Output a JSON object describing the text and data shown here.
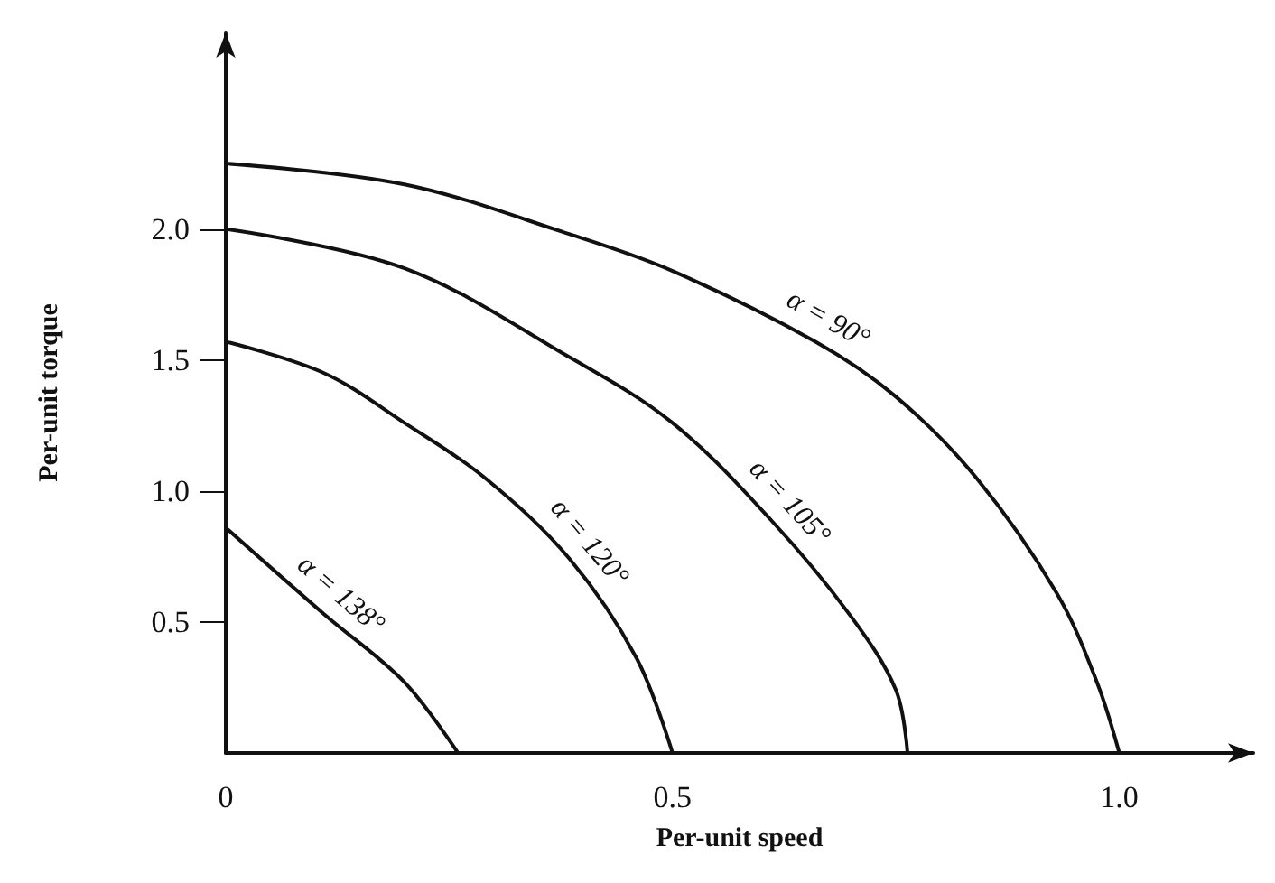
{
  "chart_data": {
    "type": "line",
    "xlabel": "Per-unit speed",
    "ylabel": "Per-unit torque",
    "xlim": [
      0,
      1.15
    ],
    "ylim": [
      0,
      2.75
    ],
    "xticks": [
      0,
      0.5,
      {
        "value": 1,
        "label": "1.0"
      }
    ],
    "yticks": [
      0.5,
      {
        "value": 1,
        "label": "1.0"
      },
      1.5,
      {
        "value": 2,
        "label": "2.0"
      }
    ],
    "grid": false,
    "marker": "none",
    "line_style": "solid",
    "series": [
      {
        "color": "#111111",
        "x": [
          0,
          0.2,
          0.385,
          0.5,
          0.66,
          0.75,
          0.84,
          0.93,
          0.975,
          1.0
        ],
        "values": [
          2.25,
          2.17,
          1.98,
          1.84,
          1.57,
          1.36,
          1.05,
          0.61,
          0.27,
          0
        ]
      },
      {
        "color": "#111111",
        "x": [
          0,
          0.2,
          0.385,
          0.5,
          0.61,
          0.7,
          0.75,
          0.763
        ],
        "values": [
          2.0,
          1.85,
          1.51,
          1.26,
          0.89,
          0.52,
          0.24,
          0
        ]
      },
      {
        "color": "#111111",
        "x": [
          0,
          0.11,
          0.2,
          0.29,
          0.385,
          0.46,
          0.5
        ],
        "values": [
          1.57,
          1.45,
          1.26,
          1.05,
          0.74,
          0.36,
          0
        ]
      },
      {
        "color": "#111111",
        "x": [
          0,
          0.11,
          0.2,
          0.26
        ],
        "values": [
          0.86,
          0.53,
          0.27,
          0
        ]
      }
    ],
    "annotations": [
      {
        "text": "α = 90°",
        "x": 0.66,
        "y": 1.57
      },
      {
        "text": "α = 105°",
        "x": 0.61,
        "y": 0.89
      },
      {
        "text": "α = 120°",
        "x": 0.385,
        "y": 0.74
      },
      {
        "text": "α = 138°",
        "x": 0.11,
        "y": 0.53
      }
    ]
  }
}
